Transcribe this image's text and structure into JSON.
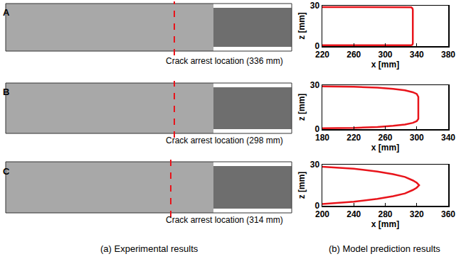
{
  "panel_labels": [
    "A",
    "B",
    "C"
  ],
  "experimental_captions": [
    "Crack arrest location (336 mm)",
    "Crack arrest location (298 mm)",
    "Crack arrest location (314 mm)"
  ],
  "figure_captions": [
    "(a) Experimental results",
    "(b) Model prediction results"
  ],
  "chart_data": [
    {
      "type": "line",
      "xlabel": "x [mm]",
      "ylabel": "z [mm]",
      "x": [
        220,
        330,
        333,
        334.5,
        335,
        335,
        334.5,
        333,
        330,
        220
      ],
      "values": [
        29,
        29,
        28.8,
        28,
        27,
        2,
        1,
        0.7,
        0.6,
        0.6
      ],
      "color": "#e8141b",
      "xlim": [
        220,
        380
      ],
      "xticks": [
        220,
        260,
        300,
        340,
        380
      ],
      "ylim": [
        0,
        30
      ],
      "yticks": [
        0,
        30
      ],
      "grid": false
    },
    {
      "type": "line",
      "xlabel": "x [mm]",
      "ylabel": "z [mm]",
      "x": [
        180,
        220,
        250,
        270,
        285,
        295,
        300,
        302,
        302,
        300,
        295,
        285,
        270,
        250,
        220,
        180
      ],
      "values": [
        29.2,
        28.9,
        28.3,
        27.5,
        26.5,
        25.2,
        24,
        22,
        7,
        5.5,
        4.3,
        3.2,
        2.3,
        1.5,
        0.9,
        0.6
      ],
      "color": "#e8141b",
      "xlim": [
        180,
        340
      ],
      "xticks": [
        180,
        220,
        260,
        300,
        340
      ],
      "ylim": [
        0,
        30
      ],
      "yticks": [
        0,
        30
      ],
      "grid": false
    },
    {
      "type": "line",
      "xlabel": "x [mm]",
      "ylabel": "z [mm]",
      "x": [
        200,
        240,
        270,
        290,
        305,
        315,
        320,
        323,
        320,
        315,
        305,
        290,
        270,
        240,
        200
      ],
      "values": [
        28.5,
        27,
        25,
        23,
        21,
        18.5,
        16.8,
        15,
        13.2,
        11.5,
        9,
        7,
        5,
        3,
        1.3
      ],
      "color": "#e8141b",
      "xlim": [
        200,
        360
      ],
      "xticks": [
        200,
        240,
        280,
        320,
        360
      ],
      "ylim": [
        0,
        30
      ],
      "yticks": [
        0,
        30
      ],
      "grid": false
    }
  ]
}
